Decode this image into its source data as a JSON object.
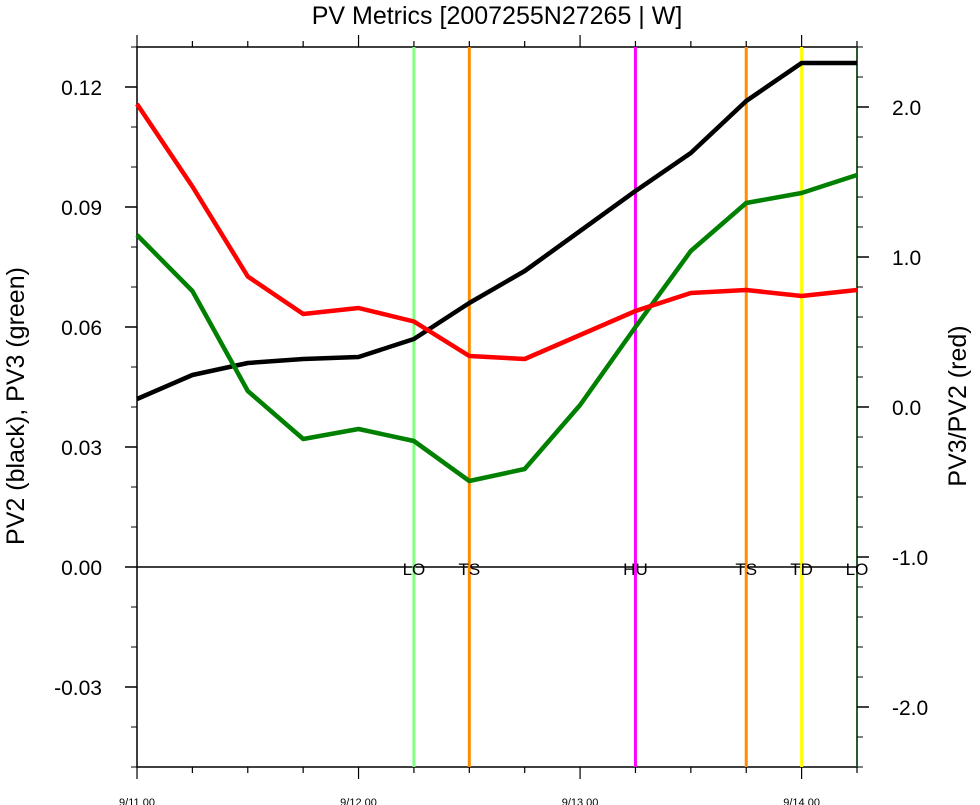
{
  "chart_data": {
    "type": "line",
    "title": "PV Metrics [2007255N27265 | W]",
    "ylabel_left": "PV2 (black), PV3 (green)",
    "ylabel_right": "PV3/PV2 (red)",
    "x_ticks": [
      {
        "x": 0,
        "label": "9/11 00"
      },
      {
        "x": 1,
        "label": "9/12 00"
      },
      {
        "x": 2,
        "label": "9/13 00"
      },
      {
        "x": 3,
        "label": "9/14 00"
      }
    ],
    "xlim": [
      0,
      3.25
    ],
    "ylim_left": [
      -0.05,
      0.13
    ],
    "ylim_right": [
      -2.4,
      2.4
    ],
    "y_ticks_left": [
      {
        "v": 0.12,
        "label": "0.12"
      },
      {
        "v": 0.09,
        "label": "0.09"
      },
      {
        "v": 0.06,
        "label": "0.06"
      },
      {
        "v": 0.03,
        "label": "0.03"
      },
      {
        "v": 0.0,
        "label": "0.00"
      },
      {
        "v": -0.03,
        "label": "-0.03"
      }
    ],
    "y_ticks_right": [
      {
        "v": 2.0,
        "label": "2.0"
      },
      {
        "v": 1.0,
        "label": "1.0"
      },
      {
        "v": 0.0,
        "label": "0.0"
      },
      {
        "v": -1.0,
        "label": "-1.0"
      },
      {
        "v": -2.0,
        "label": "-2.0"
      }
    ],
    "series": [
      {
        "color": "#000000",
        "axis": "left",
        "x": [
          0,
          0.25,
          0.5,
          0.75,
          1.0,
          1.25,
          1.5,
          1.75,
          2.0,
          2.25,
          2.5,
          2.75,
          3.0,
          3.25
        ],
        "y": [
          0.042,
          0.048,
          0.051,
          0.052,
          0.0525,
          0.057,
          0.066,
          0.074,
          0.084,
          0.094,
          0.1035,
          0.1165,
          0.126,
          0.126
        ]
      },
      {
        "color": "#008000",
        "axis": "left",
        "x": [
          0,
          0.25,
          0.5,
          0.75,
          1.0,
          1.25,
          1.5,
          1.75,
          2.0,
          2.25,
          2.5,
          2.75,
          3.0,
          3.25
        ],
        "y": [
          0.083,
          0.069,
          0.044,
          0.032,
          0.0345,
          0.0315,
          0.0215,
          0.0245,
          0.0405,
          0.06,
          0.079,
          0.091,
          0.0935,
          0.098
        ]
      },
      {
        "color": "#ff0000",
        "axis": "right",
        "x": [
          0,
          0.25,
          0.5,
          0.75,
          1.0,
          1.25,
          1.5,
          1.75,
          2.0,
          2.25,
          2.5,
          2.75,
          3.0,
          3.25
        ],
        "y": [
          2.02,
          1.47,
          0.87,
          0.62,
          0.66,
          0.57,
          0.34,
          0.32,
          0.48,
          0.64,
          0.76,
          0.78,
          0.74,
          0.78
        ]
      }
    ],
    "stage_markers": [
      {
        "x": 1.25,
        "label": "LO",
        "color": "#80ff80"
      },
      {
        "x": 1.5,
        "label": "TS",
        "color": "#ff8c00"
      },
      {
        "x": 2.25,
        "label": "HU",
        "color": "#ff00ff"
      },
      {
        "x": 2.75,
        "label": "TS",
        "color": "#ff8c00"
      },
      {
        "x": 3.0,
        "label": "TD",
        "color": "#ffff00"
      },
      {
        "x": 3.25,
        "label": "LO",
        "color": null
      }
    ],
    "zero_line": 0.0,
    "grid": false
  }
}
